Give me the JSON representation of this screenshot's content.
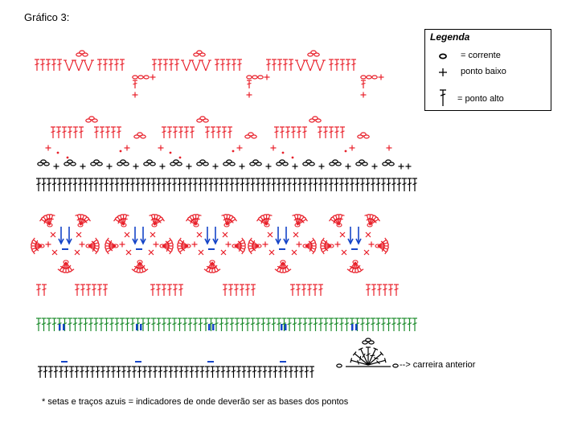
{
  "title": "Gráfico 3:",
  "legend": {
    "title": "Legenda",
    "items": [
      {
        "symbol": "chain-oval",
        "label": "= corrente"
      },
      {
        "symbol": "plus",
        "label": "ponto baixo"
      },
      {
        "symbol": "double-crochet",
        "label": "= ponto alto"
      }
    ]
  },
  "previous_row_label": "--> carreira anterior",
  "footnote": "* setas e traços azuis = indicadores de onde deverão ser as bases dos pontos",
  "colors": {
    "red": "#e8202a",
    "black": "#000000",
    "green": "#1a8a2a",
    "blue": "#1545c8"
  },
  "stitch_symbols": [
    "chain-oval",
    "plus",
    "double-crochet",
    "dot",
    "arrow",
    "dash"
  ]
}
